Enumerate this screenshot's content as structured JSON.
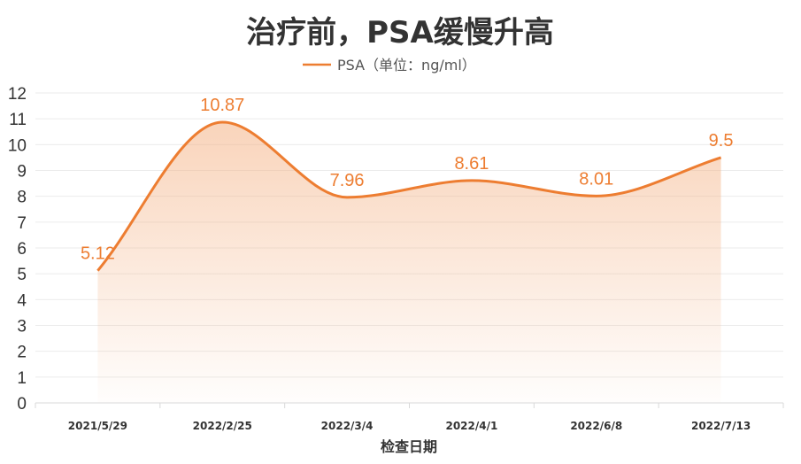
{
  "chart_data": {
    "type": "line",
    "smooth": true,
    "area_fill": true,
    "title": "治疗前，PSA缓慢升高",
    "xlabel": "检查日期",
    "ylabel": "",
    "categories": [
      "2021/5/29",
      "2022/2/25",
      "2022/3/4",
      "2022/4/1",
      "2022/6/8",
      "2022/7/13"
    ],
    "series": [
      {
        "name": "PSA（单位：ng/ml）",
        "values": [
          5.12,
          10.87,
          7.96,
          8.61,
          8.01,
          9.5
        ]
      }
    ],
    "data_labels": [
      "5.12",
      "10.87",
      "7.96",
      "8.61",
      "8.01",
      "9.5"
    ],
    "ylim": [
      0,
      12
    ],
    "yticks": [
      "0",
      "1",
      "2",
      "3",
      "4",
      "5",
      "6",
      "7",
      "8",
      "9",
      "10",
      "11",
      "12"
    ],
    "grid": true,
    "legend_position": "top-center",
    "colors": {
      "line": "#ED7D31",
      "fill": "#F4B183"
    }
  }
}
